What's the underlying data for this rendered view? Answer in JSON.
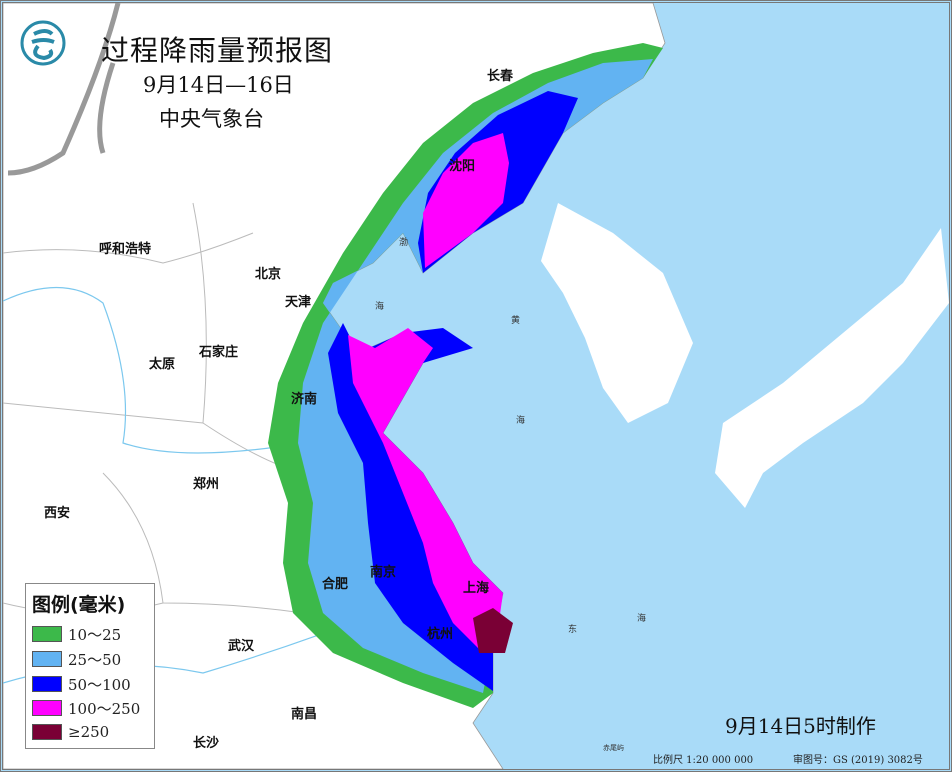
{
  "title": "过程降雨量预报图",
  "date_range": "9月14日—16日",
  "agency": "中央气象台",
  "logo": "cma-logo-icon",
  "colors": {
    "sea": "#a9dbf8",
    "land": "#ffffff",
    "band_10_25": "#3cb94a",
    "band_25_50": "#62b3f2",
    "band_50_100": "#0000ff",
    "band_100_250": "#ff00ff",
    "band_250": "#7a0035"
  },
  "legend": {
    "title": "图例(毫米)",
    "items": [
      {
        "label": "10～25",
        "color": "#3cb94a"
      },
      {
        "label": "25～50",
        "color": "#62b3f2"
      },
      {
        "label": "50～100",
        "color": "#0000ff"
      },
      {
        "label": "100～250",
        "color": "#ff00ff"
      },
      {
        "label": "≥250",
        "color": "#7a0035"
      }
    ]
  },
  "cities": [
    "长春",
    "沈阳",
    "呼和浩特",
    "北京",
    "天津",
    "太原",
    "石家庄",
    "济南",
    "郑州",
    "西安",
    "合肥",
    "南京",
    "上海",
    "杭州",
    "武汉",
    "长沙",
    "南昌"
  ],
  "seas": [
    "渤",
    "海",
    "黄",
    "海",
    "东",
    "海",
    "赤尾屿"
  ],
  "made_time": "9月14日5时制作",
  "scale": "比例尺 1:20 000 000",
  "approval": "审图号：GS (2019) 3082号"
}
